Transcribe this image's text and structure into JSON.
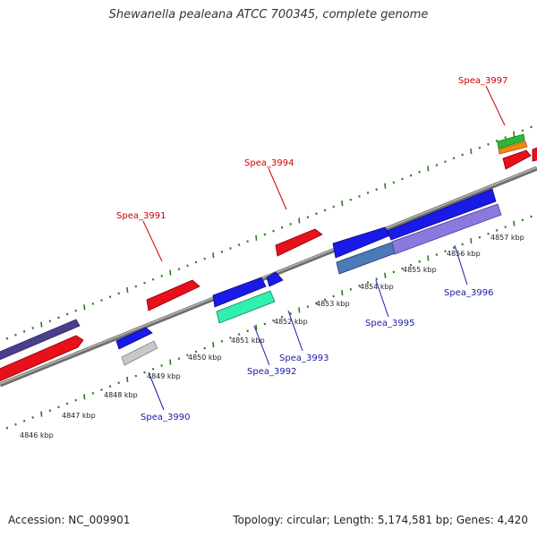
{
  "title": "Shewanella pealeana ATCC 700345, complete genome",
  "footer": {
    "accession": "Accession: NC_009901",
    "summary": "Topology: circular; Length: 5,174,581 bp; Genes: 4,420"
  },
  "colors": {
    "backbone": "#8a8a8a",
    "tick": "#2a7a1e",
    "top_label": "#cc0000",
    "bottom_label": "#1a1aaa",
    "scale_label": "#222222"
  },
  "scale_labels": [
    "4846 kbp",
    "4847 kbp",
    "4848 kbp",
    "4849 kbp",
    "4850 kbp",
    "4851 kbp",
    "4852 kbp",
    "4853 kbp",
    "4854 kbp",
    "4855 kbp",
    "4856 kbp",
    "4857 kbp"
  ],
  "gene_labels": {
    "top": [
      "Spea_3991",
      "Spea_3994",
      "Spea_3997"
    ],
    "bottom": [
      "Spea_3990",
      "Spea_3992",
      "Spea_3993",
      "Spea_3995",
      "Spea_3996"
    ]
  }
}
